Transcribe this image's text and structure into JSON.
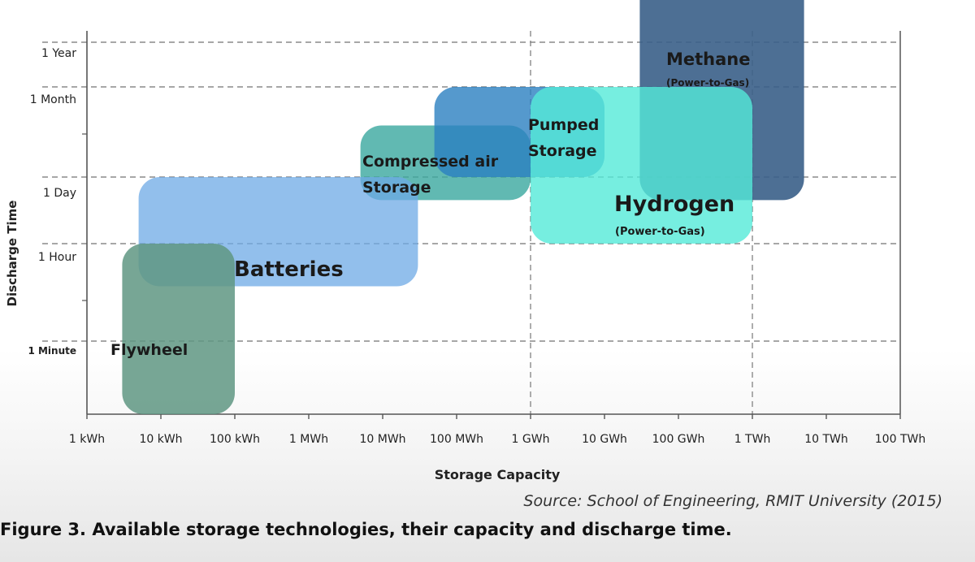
{
  "chart_data": {
    "type": "range-area",
    "xlabel": "Storage Capacity",
    "ylabel": "Discharge Time",
    "x_scale": "log",
    "x_ticks": [
      "1 kWh",
      "10 kWh",
      "100 kWh",
      "1 MWh",
      "10 MWh",
      "100 MWh",
      "1 GWh",
      "10 GWh",
      "100 GWh",
      "1 TWh",
      "10 TWh",
      "100 TWh"
    ],
    "y_ticks": [
      "1 Minute",
      "1 Hour",
      "1 Day",
      "1 Month",
      "1 Year"
    ],
    "grid": true,
    "series": [
      {
        "name": "Flywheel",
        "x_range": [
          "3 kWh",
          "100 kWh"
        ],
        "y_range": [
          "< 1 Minute",
          "1 Hour"
        ],
        "color": "#5f9682"
      },
      {
        "name": "Batteries",
        "x_range": [
          "5 kWh",
          "30 MWh"
        ],
        "y_range": [
          "10 Minutes",
          "1 Day"
        ],
        "color": "#6ea9e6"
      },
      {
        "name": "Compressed air Storage",
        "x_range": [
          "5 MWh",
          "1 GWh"
        ],
        "y_range": [
          "8 Hours",
          "1 Week"
        ],
        "color": "#3aa89f"
      },
      {
        "name": "Pumped Storage",
        "x_range": [
          "50 MWh",
          "10 GWh"
        ],
        "y_range": [
          "1 Day",
          "1 Month"
        ],
        "color": "#2b7fc1"
      },
      {
        "name": "Hydrogen",
        "sub": "(Power-to-Gas)",
        "x_range": [
          "1 GWh",
          "1 TWh"
        ],
        "y_range": [
          "1 Hour",
          "1 Month"
        ],
        "color": "#54ead8"
      },
      {
        "name": "Methane",
        "sub": "(Power-to-Gas)",
        "x_range": [
          "30 GWh",
          "5 TWh"
        ],
        "y_range": [
          "8 Hours",
          "> 1 Year"
        ],
        "color": "#3a5f88"
      }
    ]
  },
  "source_text": "Source: School of Engineering, RMIT University (2015)",
  "caption": "Figure 3. Available storage technologies, their capacity and discharge time."
}
